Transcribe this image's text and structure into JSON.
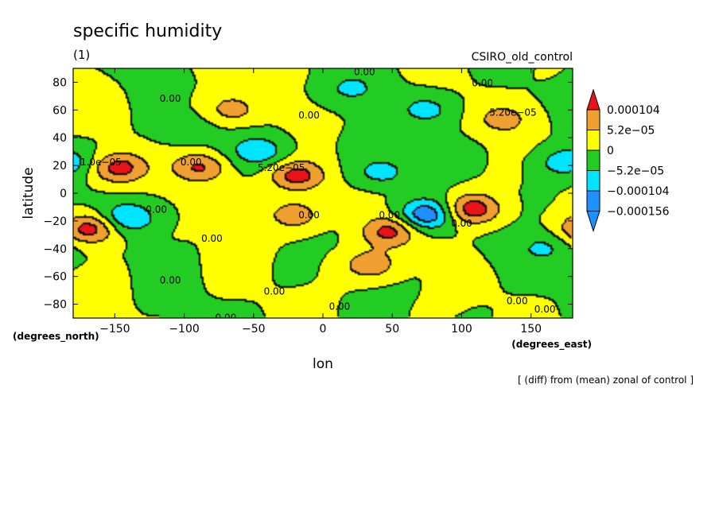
{
  "chart_data": {
    "type": "heatmap",
    "title": "specific humidity",
    "subtitle": "(1)",
    "source_label": "CSIRO_old_control",
    "xlabel": "lon",
    "ylabel": "latitude",
    "x_unit_label": "(degrees_east)",
    "y_unit_label": "(degrees_north)",
    "footnote": "[ (diff) from (mean) zonal of control ]",
    "xlim": [
      -180,
      180
    ],
    "ylim": [
      -90,
      90
    ],
    "x_ticks": [
      -150,
      -100,
      -50,
      0,
      50,
      100,
      150
    ],
    "x_tick_labels": [
      "−150",
      "−100",
      "−50",
      "0",
      "50",
      "100",
      "150"
    ],
    "y_ticks": [
      80,
      60,
      40,
      20,
      0,
      -20,
      -40,
      -60,
      -80
    ],
    "y_tick_labels": [
      "80",
      "60",
      "40",
      "20",
      "0",
      "−20",
      "−40",
      "−60",
      "−80"
    ],
    "colorbar": {
      "levels": [
        0.000104,
        5.2e-05,
        0,
        -5.2e-05,
        -0.000104,
        -0.000156
      ],
      "labels": [
        "0.000104",
        "5.2e−05",
        "0",
        "−5.2e−05",
        "−0.000104",
        "−0.000156"
      ],
      "colors": [
        "#e8141a",
        "#f0a030",
        "#ffff00",
        "#22cc22",
        "#00e5ff",
        "#1e90ff"
      ],
      "extend": "both"
    },
    "contour_labels": [
      {
        "text": "0.00",
        "lon": 30,
        "lat": 87
      },
      {
        "text": "0.00",
        "lon": 115,
        "lat": 79
      },
      {
        "text": "0.00",
        "lon": -110,
        "lat": 68
      },
      {
        "text": "0.00",
        "lon": -10,
        "lat": 56
      },
      {
        "text": "5.20e−05",
        "lon": 137,
        "lat": 58
      },
      {
        "text": "1.0e−05",
        "lon": -160,
        "lat": 22
      },
      {
        "text": "0.00",
        "lon": -95,
        "lat": 22
      },
      {
        "text": "5.20e−05",
        "lon": -30,
        "lat": 18
      },
      {
        "text": "0.00",
        "lon": -120,
        "lat": -12
      },
      {
        "text": "0.00",
        "lon": -10,
        "lat": -16
      },
      {
        "text": "0.00",
        "lon": 48,
        "lat": -16
      },
      {
        "text": "0.00",
        "lon": 100,
        "lat": -22
      },
      {
        "text": "0.00",
        "lon": -80,
        "lat": -33
      },
      {
        "text": "0.00",
        "lon": -110,
        "lat": -63
      },
      {
        "text": "0.00",
        "lon": -35,
        "lat": -71
      },
      {
        "text": "0.00",
        "lon": 12,
        "lat": -82
      },
      {
        "text": "0.00",
        "lon": 140,
        "lat": -78
      },
      {
        "text": "0.00",
        "lon": 160,
        "lat": -84
      },
      {
        "text": "0.00",
        "lon": -70,
        "lat": -90
      }
    ],
    "maxima": [
      {
        "lon": -147,
        "lat": 18,
        "value": 0.00013
      },
      {
        "lon": -88,
        "lat": 18,
        "value": 0.00011
      },
      {
        "lon": -18,
        "lat": 12,
        "value": 0.00013
      },
      {
        "lon": 108,
        "lat": -12,
        "value": 0.00014
      },
      {
        "lon": -167,
        "lat": -26,
        "value": 0.00014
      },
      {
        "lon": 48,
        "lat": -28,
        "value": 0.00012
      },
      {
        "lon": -20,
        "lat": -16,
        "value": 9e-05
      },
      {
        "lon": 35,
        "lat": -52,
        "value": 9e-05
      },
      {
        "lon": 130,
        "lat": 53,
        "value": 7e-05
      },
      {
        "lon": -65,
        "lat": 60,
        "value": 7e-05
      },
      {
        "lon": 175,
        "lat": 22,
        "value": -9e-05
      },
      {
        "lon": -140,
        "lat": -18,
        "value": -0.00011
      },
      {
        "lon": 75,
        "lat": -16,
        "value": -0.00015
      },
      {
        "lon": -45,
        "lat": 30,
        "value": -9e-05
      },
      {
        "lon": 42,
        "lat": 15,
        "value": -8e-05
      },
      {
        "lon": 75,
        "lat": 60,
        "value": -7e-05
      },
      {
        "lon": 20,
        "lat": 75,
        "value": -6e-05
      },
      {
        "lon": 160,
        "lat": -40,
        "value": -6e-05
      },
      {
        "lon": -100,
        "lat": 45,
        "value": -4e-05
      }
    ]
  }
}
